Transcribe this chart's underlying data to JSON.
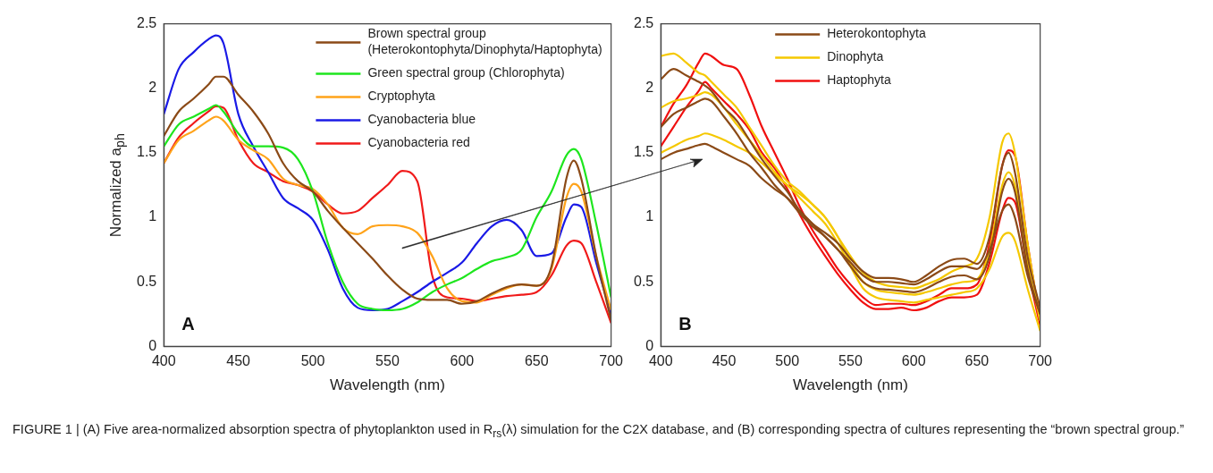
{
  "chart_data": [
    {
      "type": "line",
      "xlabel": "Wavelength (nm)",
      "ylabel": "Normalized a$_{ph}$",
      "xlim": [
        400,
        700
      ],
      "xticks": [
        400,
        450,
        500,
        550,
        600,
        650,
        700
      ],
      "ylim": [
        0,
        2.5
      ],
      "yticks": [
        0,
        0.5,
        1,
        1.5,
        2,
        2.5
      ],
      "legend": "top right",
      "marker": "none",
      "line_style": "solid",
      "x": [
        400,
        410,
        420,
        430,
        435,
        440,
        450,
        460,
        470,
        480,
        490,
        500,
        510,
        520,
        530,
        540,
        550,
        560,
        570,
        580,
        590,
        600,
        610,
        620,
        630,
        640,
        650,
        660,
        670,
        675,
        680,
        690,
        700
      ],
      "annotations": [
        "A",
        "FIGURE 1 | (A) Five area-normalized absorption spectra of phytoplankton used in R$_{rs}$(λ) simulation for the C2X database, and (B) corresponding spectra of cultures representing the “brown spectral group.”"
      ],
      "series": [
        {
          "name": "Brown spectral group (Heterokontophyta/Dinophyta/Haptophyta)",
          "color": "#8b4a17",
          "values": [
            1.63,
            1.82,
            1.92,
            2.03,
            2.09,
            2.09,
            1.95,
            1.82,
            1.65,
            1.42,
            1.28,
            1.2,
            1.05,
            0.92,
            0.8,
            0.68,
            0.55,
            0.44,
            0.37,
            0.36,
            0.36,
            0.33,
            0.35,
            0.41,
            0.46,
            0.48,
            0.47,
            0.62,
            1.3,
            1.44,
            1.3,
            0.7,
            0.2
          ]
        },
        {
          "name": "Green spectral group (Chlorophyta)",
          "color": "#1ee61e",
          "values": [
            1.55,
            1.72,
            1.78,
            1.84,
            1.87,
            1.82,
            1.65,
            1.55,
            1.55,
            1.54,
            1.45,
            1.2,
            0.8,
            0.5,
            0.33,
            0.29,
            0.28,
            0.29,
            0.34,
            0.42,
            0.48,
            0.53,
            0.6,
            0.66,
            0.69,
            0.75,
            1.0,
            1.2,
            1.48,
            1.53,
            1.45,
            0.95,
            0.38
          ]
        },
        {
          "name": "Cryptophyta",
          "color": "#ffa31a",
          "values": [
            1.42,
            1.6,
            1.67,
            1.75,
            1.78,
            1.75,
            1.6,
            1.52,
            1.45,
            1.3,
            1.25,
            1.22,
            1.1,
            0.92,
            0.87,
            0.93,
            0.94,
            0.93,
            0.88,
            0.7,
            0.45,
            0.35,
            0.34,
            0.4,
            0.45,
            0.48,
            0.47,
            0.6,
            1.15,
            1.26,
            1.2,
            0.7,
            0.28
          ]
        },
        {
          "name": "Cyanobacteria blue",
          "color": "#1a1ae6",
          "values": [
            1.8,
            2.15,
            2.28,
            2.38,
            2.41,
            2.35,
            1.8,
            1.55,
            1.35,
            1.15,
            1.07,
            0.98,
            0.75,
            0.45,
            0.3,
            0.28,
            0.29,
            0.35,
            0.42,
            0.5,
            0.57,
            0.65,
            0.8,
            0.93,
            0.98,
            0.9,
            0.7,
            0.72,
            1.0,
            1.1,
            1.08,
            0.65,
            0.25
          ]
        },
        {
          "name": "Cyanobacteria red",
          "color": "#f01a1a",
          "values": [
            1.42,
            1.62,
            1.73,
            1.82,
            1.86,
            1.85,
            1.6,
            1.42,
            1.35,
            1.28,
            1.25,
            1.2,
            1.1,
            1.03,
            1.05,
            1.15,
            1.25,
            1.36,
            1.28,
            0.55,
            0.38,
            0.37,
            0.35,
            0.37,
            0.39,
            0.4,
            0.42,
            0.55,
            0.78,
            0.82,
            0.8,
            0.5,
            0.18
          ]
        }
      ]
    },
    {
      "type": "line",
      "xlabel": "Wavelength (nm)",
      "xlim": [
        400,
        700
      ],
      "xticks": [
        400,
        450,
        500,
        550,
        600,
        650,
        700
      ],
      "ylim": [
        0,
        2.5
      ],
      "yticks": [
        0,
        0.5,
        1,
        1.5,
        2,
        2.5
      ],
      "legend": "top",
      "marker": "none",
      "line_style": "solid",
      "x": [
        400,
        410,
        420,
        430,
        435,
        440,
        450,
        460,
        470,
        480,
        490,
        500,
        510,
        520,
        530,
        540,
        550,
        560,
        570,
        580,
        590,
        600,
        610,
        620,
        630,
        640,
        650,
        660,
        670,
        675,
        680,
        690,
        700
      ],
      "annotations": [
        "B"
      ],
      "series": [
        {
          "name": "Heterokontophyta",
          "color": "#8b4a17",
          "values": [
            1.45,
            1.5,
            1.53,
            1.56,
            1.57,
            1.55,
            1.5,
            1.45,
            1.4,
            1.3,
            1.22,
            1.15,
            1.05,
            0.95,
            0.85,
            0.75,
            0.65,
            0.55,
            0.5,
            0.5,
            0.49,
            0.48,
            0.52,
            0.58,
            0.62,
            0.62,
            0.6,
            0.75,
            1.05,
            1.1,
            1.0,
            0.55,
            0.25
          ]
        },
        {
          "color": "#8b4a17",
          "values": [
            2.07,
            2.15,
            2.1,
            2.05,
            2.02,
            1.98,
            1.85,
            1.75,
            1.6,
            1.45,
            1.32,
            1.2,
            1.05,
            0.95,
            0.88,
            0.8,
            0.68,
            0.58,
            0.53,
            0.53,
            0.52,
            0.5,
            0.55,
            0.62,
            0.67,
            0.68,
            0.64,
            0.85,
            1.4,
            1.5,
            1.35,
            0.7,
            0.3
          ]
        },
        {
          "color": "#8b4a17",
          "values": [
            1.7,
            1.8,
            1.85,
            1.9,
            1.92,
            1.9,
            1.78,
            1.65,
            1.5,
            1.38,
            1.25,
            1.15,
            1.03,
            0.93,
            0.85,
            0.75,
            0.62,
            0.5,
            0.45,
            0.44,
            0.43,
            0.42,
            0.45,
            0.5,
            0.54,
            0.55,
            0.52,
            0.7,
            1.2,
            1.3,
            1.2,
            0.6,
            0.25
          ]
        },
        {
          "name": "Dinophyta",
          "color": "#f5c800",
          "values": [
            2.25,
            2.27,
            2.2,
            2.12,
            2.1,
            2.05,
            1.95,
            1.85,
            1.7,
            1.55,
            1.4,
            1.28,
            1.2,
            1.1,
            1.0,
            0.85,
            0.7,
            0.57,
            0.5,
            0.47,
            0.46,
            0.45,
            0.48,
            0.52,
            0.58,
            0.62,
            0.68,
            1.0,
            1.58,
            1.65,
            1.5,
            0.8,
            0.2
          ]
        },
        {
          "color": "#f5c800",
          "values": [
            1.85,
            1.9,
            1.92,
            1.95,
            1.97,
            1.95,
            1.85,
            1.72,
            1.6,
            1.48,
            1.35,
            1.25,
            1.18,
            1.1,
            1.0,
            0.85,
            0.65,
            0.5,
            0.44,
            0.42,
            0.41,
            0.4,
            0.42,
            0.45,
            0.48,
            0.5,
            0.52,
            0.75,
            1.25,
            1.35,
            1.25,
            0.65,
            0.2
          ]
        },
        {
          "color": "#f5c800",
          "values": [
            1.5,
            1.55,
            1.6,
            1.63,
            1.65,
            1.64,
            1.6,
            1.55,
            1.5,
            1.42,
            1.33,
            1.25,
            1.15,
            1.05,
            0.95,
            0.8,
            0.62,
            0.45,
            0.38,
            0.36,
            0.35,
            0.34,
            0.36,
            0.38,
            0.4,
            0.42,
            0.45,
            0.6,
            0.85,
            0.88,
            0.82,
            0.45,
            0.12
          ]
        },
        {
          "name": "Haptophyta",
          "color": "#f01010",
          "values": [
            1.7,
            1.88,
            2.02,
            2.2,
            2.27,
            2.25,
            2.18,
            2.15,
            1.95,
            1.7,
            1.5,
            1.3,
            1.08,
            0.9,
            0.75,
            0.6,
            0.48,
            0.38,
            0.32,
            0.33,
            0.33,
            0.32,
            0.35,
            0.4,
            0.45,
            0.45,
            0.48,
            0.8,
            1.4,
            1.52,
            1.48,
            0.8,
            0.2
          ]
        },
        {
          "color": "#f01010",
          "values": [
            1.55,
            1.7,
            1.85,
            1.98,
            2.05,
            2.0,
            1.9,
            1.8,
            1.68,
            1.5,
            1.38,
            1.22,
            1.02,
            0.85,
            0.7,
            0.56,
            0.44,
            0.34,
            0.29,
            0.29,
            0.3,
            0.28,
            0.3,
            0.35,
            0.38,
            0.38,
            0.4,
            0.65,
            1.05,
            1.15,
            1.12,
            0.6,
            0.16
          ]
        }
      ]
    }
  ]
}
